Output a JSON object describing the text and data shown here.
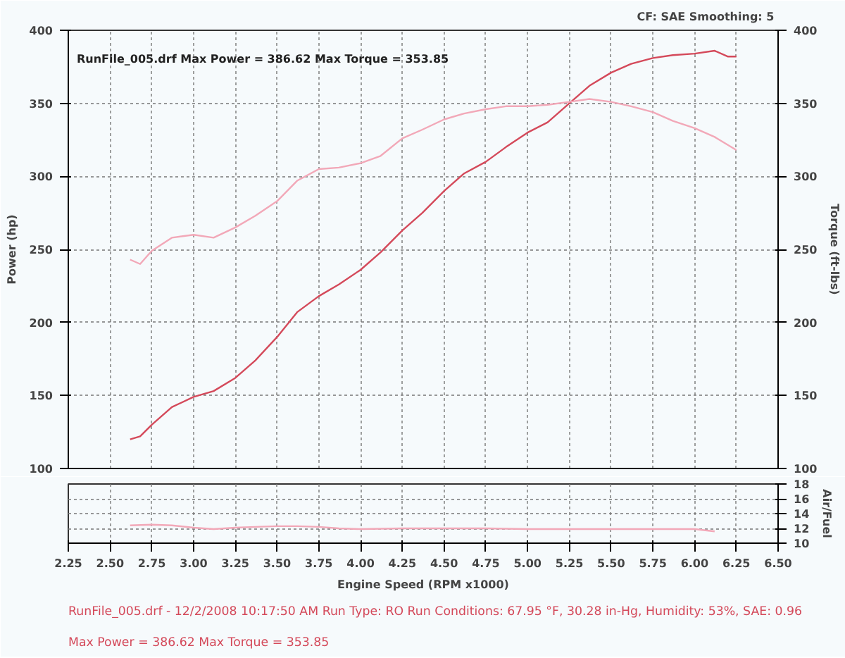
{
  "chart_data": [
    {
      "type": "line",
      "ylabel": "Power (hp)",
      "y2label": "Torque (ft-lbs)",
      "xlim": [
        2.25,
        6.5
      ],
      "xticks": [
        {
          "value": 2.25,
          "label": null
        },
        {
          "value": 2.5,
          "label": null
        },
        {
          "value": 2.75,
          "label": null
        },
        {
          "value": 3.0,
          "label": null
        },
        {
          "value": 3.25,
          "label": null
        },
        {
          "value": 3.5,
          "label": null
        },
        {
          "value": 3.75,
          "label": null
        },
        {
          "value": 4.0,
          "label": null
        },
        {
          "value": 4.25,
          "label": null
        },
        {
          "value": 4.5,
          "label": null
        },
        {
          "value": 4.75,
          "label": null
        },
        {
          "value": 5.0,
          "label": null
        },
        {
          "value": 5.25,
          "label": null
        },
        {
          "value": 5.5,
          "label": null
        },
        {
          "value": 5.75,
          "label": null
        },
        {
          "value": 6.0,
          "label": null
        },
        {
          "value": 6.25,
          "label": null
        },
        {
          "value": 6.5,
          "label": null
        }
      ],
      "ylim": [
        100,
        400
      ],
      "yticks": [
        100,
        150,
        200,
        250,
        300,
        350,
        400
      ],
      "y2lim": [
        100,
        400
      ],
      "y2ticks": [
        100,
        150,
        200,
        250,
        300,
        350,
        400
      ],
      "tick_labels": "y",
      "grid": true,
      "line_style": "solid",
      "marker": "none",
      "series": [
        {
          "color": "#d4495a",
          "x": [
            2.62,
            2.68,
            2.75,
            2.87,
            3.0,
            3.12,
            3.25,
            3.37,
            3.5,
            3.62,
            3.75,
            3.87,
            4.0,
            4.12,
            4.25,
            4.37,
            4.5,
            4.62,
            4.75,
            4.87,
            5.0,
            5.12,
            5.25,
            5.37,
            5.5,
            5.62,
            5.75,
            5.87,
            6.0,
            6.12,
            6.2,
            6.25
          ],
          "values": [
            120,
            122,
            130,
            142,
            149,
            153,
            162,
            174,
            190,
            207,
            218,
            226,
            236,
            248,
            263,
            275,
            290,
            302,
            310,
            320,
            330,
            337,
            350,
            362,
            371,
            377,
            381,
            383,
            384,
            386,
            382,
            382
          ]
        },
        {
          "color": "#f2a8b8",
          "x": [
            2.62,
            2.68,
            2.75,
            2.87,
            3.0,
            3.12,
            3.25,
            3.37,
            3.5,
            3.62,
            3.75,
            3.87,
            4.0,
            4.12,
            4.25,
            4.37,
            4.5,
            4.62,
            4.75,
            4.87,
            5.0,
            5.12,
            5.25,
            5.37,
            5.5,
            5.62,
            5.75,
            5.87,
            6.0,
            6.12,
            6.25
          ],
          "values": [
            243,
            240,
            249,
            258,
            260,
            258,
            265,
            273,
            283,
            297,
            305,
            306,
            309,
            314,
            326,
            332,
            339,
            343,
            346,
            348,
            348,
            349,
            351,
            353,
            351,
            348,
            344,
            338,
            333,
            327,
            318
          ]
        }
      ],
      "annotations": [
        "CF: SAE  Smoothing: 5",
        "RunFile_005.drf Max Power = 386.62    Max Torque = 353.85"
      ]
    },
    {
      "type": "line",
      "xlabel": "Engine Speed (RPM x1000)",
      "y2label": "Air/Fuel",
      "xlim": [
        2.25,
        6.5
      ],
      "xticks": [
        {
          "value": 2.25,
          "label": "2.25"
        },
        {
          "value": 2.5,
          "label": "2.50"
        },
        {
          "value": 2.75,
          "label": "2.75"
        },
        {
          "value": 3.0,
          "label": "3.00"
        },
        {
          "value": 3.25,
          "label": "3.25"
        },
        {
          "value": 3.5,
          "label": "3.50"
        },
        {
          "value": 3.75,
          "label": "3.75"
        },
        {
          "value": 4.0,
          "label": "4.00"
        },
        {
          "value": 4.25,
          "label": "4.25"
        },
        {
          "value": 4.5,
          "label": "4.50"
        },
        {
          "value": 4.75,
          "label": "4.75"
        },
        {
          "value": 5.0,
          "label": "5.00"
        },
        {
          "value": 5.25,
          "label": "5.25"
        },
        {
          "value": 5.5,
          "label": "5.50"
        },
        {
          "value": 5.75,
          "label": "5.75"
        },
        {
          "value": 6.0,
          "label": "6.00"
        },
        {
          "value": 6.25,
          "label": "6.25"
        },
        {
          "value": 6.5,
          "label": "6.50"
        }
      ],
      "y2lim": [
        10,
        18
      ],
      "y2ticks": [
        10,
        12,
        14,
        16,
        18
      ],
      "grid": true,
      "line_style": "solid",
      "marker": "none",
      "series": [
        {
          "color": "#f2a8b8",
          "axis": "y2",
          "x": [
            2.62,
            2.75,
            2.87,
            3.0,
            3.12,
            3.25,
            3.37,
            3.5,
            3.62,
            3.75,
            3.87,
            4.0,
            4.25,
            4.5,
            4.75,
            5.0,
            5.25,
            5.5,
            5.75,
            6.0,
            6.12
          ],
          "values": [
            12.4,
            12.5,
            12.4,
            12.1,
            11.9,
            12.1,
            12.2,
            12.3,
            12.3,
            12.2,
            12.0,
            11.9,
            12.0,
            12.0,
            12.0,
            11.9,
            11.9,
            11.9,
            11.9,
            11.9,
            11.6
          ]
        }
      ],
      "annotations": [
        "RunFile_005.drf - 12/2/2008 10:17:50 AM  Run Type: RO  Run Conditions: 67.95 °F, 30.28 in-Hg,  Humidity:  53%,  SAE: 0.96",
        "Max Power = 386.62  Max Torque = 353.85"
      ]
    }
  ]
}
